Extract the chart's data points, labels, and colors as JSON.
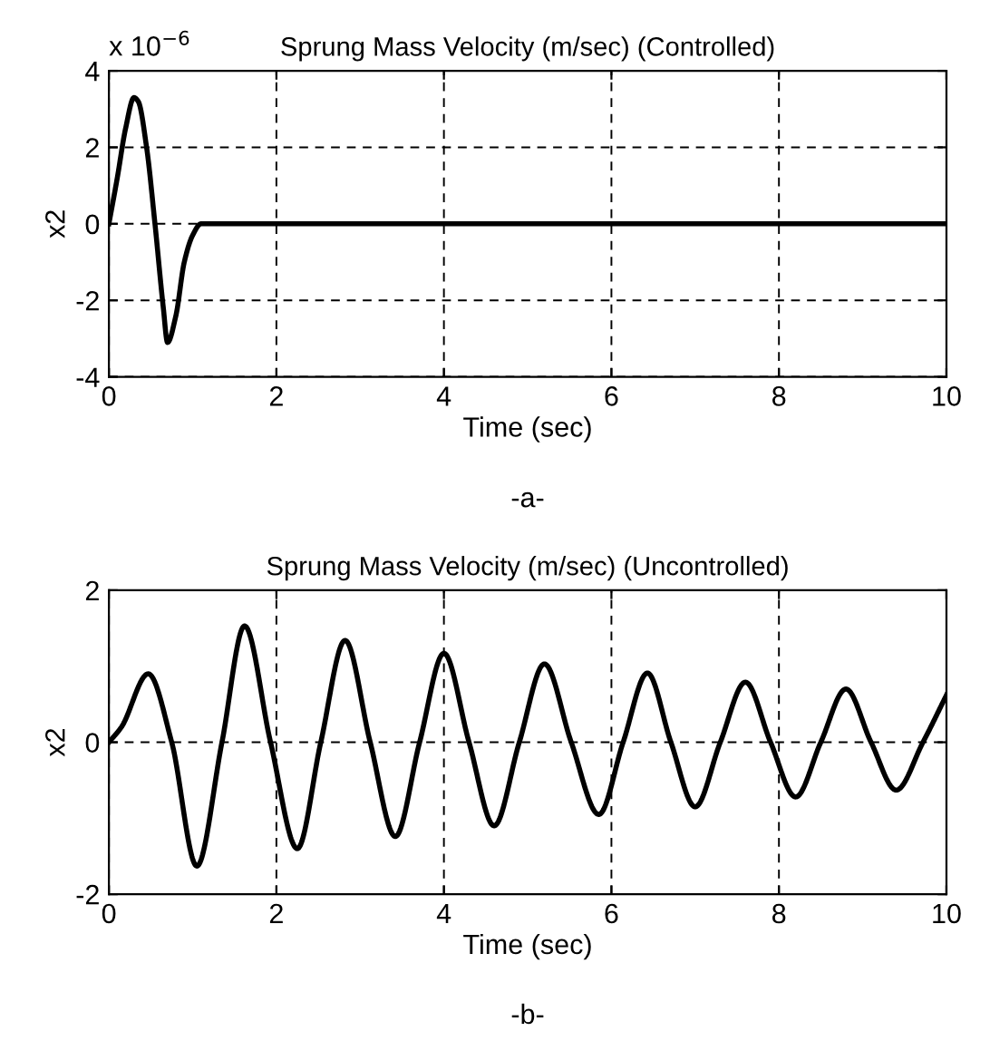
{
  "chart_data": [
    {
      "type": "line",
      "title": "Sprung Mass Velocity (m/sec) (Controlled)",
      "xlabel": "Time (sec)",
      "ylabel": "x2",
      "annotations": [
        "x 10$^{−6}$",
        "-a-"
      ],
      "xlim": [
        0,
        10
      ],
      "ylim": [
        -4,
        4
      ],
      "xticks": [
        0,
        2,
        4,
        6,
        8,
        10
      ],
      "yticks": [
        -4,
        -2,
        0,
        2,
        4
      ],
      "grid": true,
      "line_style": "solid",
      "series": [
        {
          "color": "#000000",
          "x": [
            0,
            0.1,
            0.2,
            0.3,
            0.35,
            0.45,
            0.55,
            0.65,
            0.7,
            0.8,
            0.9,
            1.0,
            1.1,
            10
          ],
          "values": [
            0,
            1.2,
            2.5,
            3.3,
            3.2,
            2.0,
            0,
            -2.2,
            -3.1,
            -2.4,
            -1.0,
            -0.3,
            0,
            0
          ]
        }
      ]
    },
    {
      "type": "line",
      "title": "Sprung Mass Velocity (m/sec) (Uncontrolled)",
      "xlabel": "Time (sec)",
      "ylabel": "x2",
      "annotations": [
        "-b-"
      ],
      "xlim": [
        0,
        10
      ],
      "ylim": [
        -2,
        2
      ],
      "xticks": [
        0,
        2,
        4,
        6,
        8,
        10
      ],
      "yticks": [
        -2,
        0,
        2
      ],
      "grid": true,
      "line_style": "solid",
      "series": [
        {
          "color": "#000000",
          "x": [
            0,
            0.15,
            0.47,
            0.75,
            1.05,
            1.35,
            1.62,
            1.93,
            2.25,
            2.53,
            2.82,
            3.12,
            3.42,
            3.71,
            4.0,
            4.3,
            4.6,
            4.9,
            5.2,
            5.52,
            5.85,
            6.14,
            6.43,
            6.71,
            7.0,
            7.3,
            7.6,
            7.9,
            8.2,
            8.5,
            8.8,
            9.1,
            9.4,
            9.72,
            10
          ],
          "values": [
            0,
            0.2,
            0.9,
            0,
            -1.63,
            0,
            1.53,
            0,
            -1.4,
            0,
            1.34,
            0,
            -1.24,
            0,
            1.17,
            0,
            -1.1,
            0,
            1.03,
            0,
            -0.95,
            0,
            0.91,
            0,
            -0.85,
            0,
            0.79,
            0,
            -0.72,
            0,
            0.7,
            0,
            -0.63,
            0,
            0.62
          ]
        }
      ]
    }
  ]
}
